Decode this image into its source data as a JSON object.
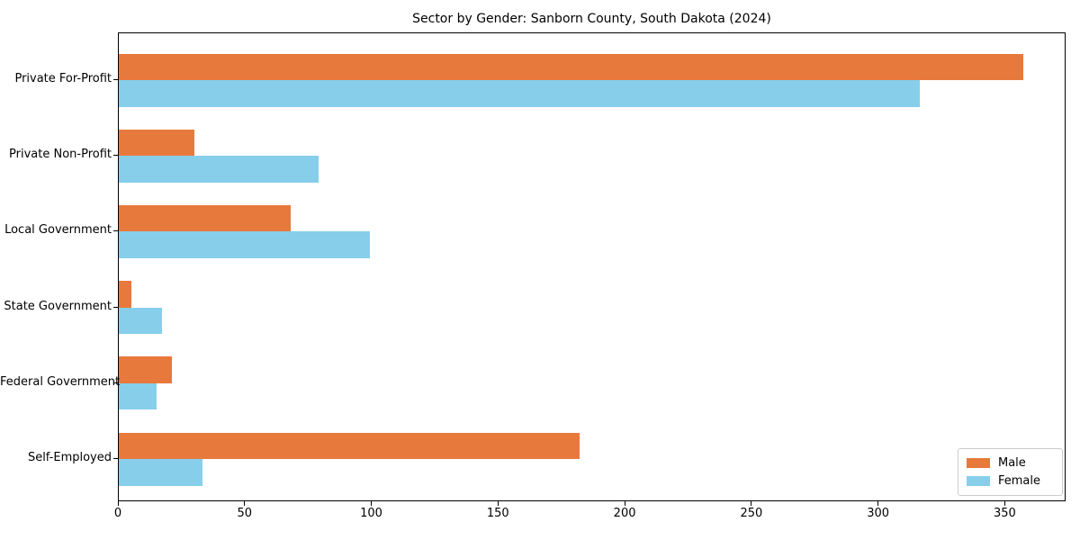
{
  "chart_data": {
    "type": "bar",
    "orientation": "horizontal",
    "title": "Sector by Gender: Sanborn County, South Dakota (2024)",
    "categories": [
      "Private For-Profit",
      "Private Non-Profit",
      "Local Government",
      "State Government",
      "Federal Government",
      "Self-Employed"
    ],
    "series": [
      {
        "name": "Male",
        "color": "#E8793C",
        "values": [
          357,
          30,
          68,
          5,
          21,
          182
        ]
      },
      {
        "name": "Female",
        "color": "#87CEEB",
        "values": [
          316,
          79,
          99,
          17,
          15,
          33
        ]
      }
    ],
    "xlabel": "",
    "ylabel": "",
    "xlim": [
      0,
      374
    ],
    "xticks": [
      0,
      50,
      100,
      150,
      200,
      250,
      300,
      350
    ],
    "grid": false,
    "legend_position": "lower right",
    "axis_color": "#000000",
    "legend_border_color": "#cccccc"
  }
}
